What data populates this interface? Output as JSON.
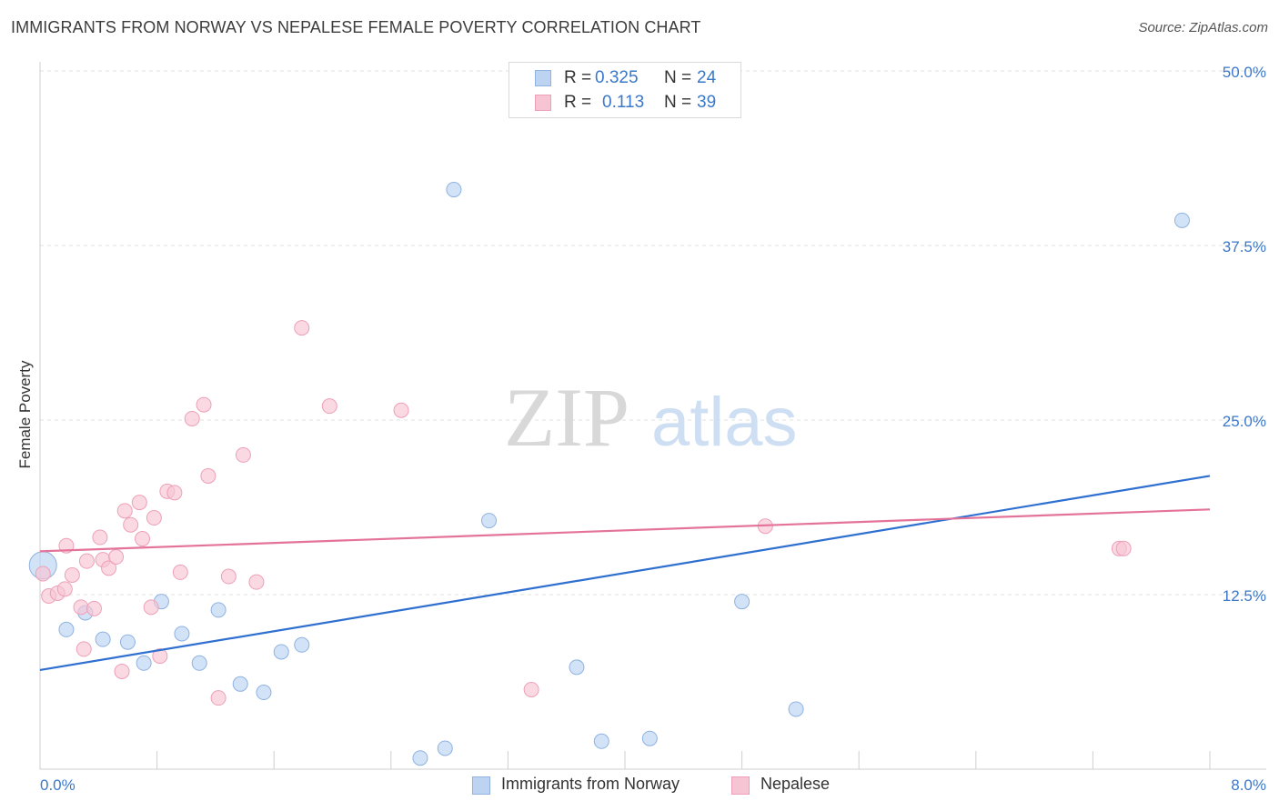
{
  "title": "IMMIGRANTS FROM NORWAY VS NEPALESE FEMALE POVERTY CORRELATION CHART",
  "source": "Source: ZipAtlas.com",
  "watermark": {
    "zip": "ZIP",
    "atlas": "atlas"
  },
  "legend": {
    "rows": [
      {
        "r_label": "R =",
        "r_value": "0.325",
        "n_label": "N =",
        "n_value": "24"
      },
      {
        "r_label": "R =",
        "r_value": "0.113",
        "n_label": "N =",
        "n_value": "39"
      }
    ]
  },
  "colors": {
    "norway_fill": "#bcd4f2",
    "norway_stroke": "#8fb2e0",
    "norway_line": "#2e6fd0",
    "nepalese_fill": "#f7c4d4",
    "nepalese_stroke": "#eda0b8",
    "nepalese_line": "#e4739a",
    "tick_label": "#3a78c9",
    "grid": "#e0e0e0"
  },
  "chart_data": {
    "type": "scatter",
    "title": "IMMIGRANTS FROM NORWAY VS NEPALESE FEMALE POVERTY CORRELATION CHART",
    "xlabel": "",
    "ylabel": "Female Poverty",
    "xlim": [
      0,
      8
    ],
    "ylim": [
      0,
      50
    ],
    "x_tick_labels": [
      "0.0%",
      "8.0%"
    ],
    "y_ticks": [
      12.5,
      25.0,
      37.5,
      50.0
    ],
    "y_tick_labels": [
      "12.5%",
      "25.0%",
      "37.5%",
      "50.0%"
    ],
    "grid": "horizontal dashed",
    "series": [
      {
        "name": "Immigrants from Norway",
        "trend": [
          [
            0,
            7.1
          ],
          [
            8,
            21.0
          ]
        ],
        "points": [
          [
            0.02,
            14.6
          ],
          [
            0.18,
            10.0
          ],
          [
            0.31,
            11.2
          ],
          [
            0.43,
            9.3
          ],
          [
            0.6,
            9.1
          ],
          [
            0.71,
            7.6
          ],
          [
            0.83,
            12.0
          ],
          [
            0.97,
            9.7
          ],
          [
            1.09,
            7.6
          ],
          [
            1.22,
            11.4
          ],
          [
            1.37,
            6.1
          ],
          [
            1.53,
            5.5
          ],
          [
            1.65,
            8.4
          ],
          [
            1.79,
            8.9
          ],
          [
            2.6,
            0.8
          ],
          [
            2.77,
            1.5
          ],
          [
            2.83,
            41.5
          ],
          [
            3.07,
            17.8
          ],
          [
            3.67,
            7.3
          ],
          [
            3.84,
            2.0
          ],
          [
            4.17,
            2.2
          ],
          [
            4.8,
            12.0
          ],
          [
            5.17,
            4.3
          ],
          [
            7.81,
            39.3
          ]
        ]
      },
      {
        "name": "Nepalese",
        "trend": [
          [
            0,
            15.6
          ],
          [
            8,
            18.6
          ]
        ],
        "points": [
          [
            0.02,
            14.0
          ],
          [
            0.06,
            12.4
          ],
          [
            0.12,
            12.6
          ],
          [
            0.17,
            12.9
          ],
          [
            0.18,
            16.0
          ],
          [
            0.22,
            13.9
          ],
          [
            0.28,
            11.6
          ],
          [
            0.3,
            8.6
          ],
          [
            0.32,
            14.9
          ],
          [
            0.37,
            11.5
          ],
          [
            0.41,
            16.6
          ],
          [
            0.43,
            15.0
          ],
          [
            0.47,
            14.4
          ],
          [
            0.52,
            15.2
          ],
          [
            0.56,
            7.0
          ],
          [
            0.58,
            18.5
          ],
          [
            0.62,
            17.5
          ],
          [
            0.68,
            19.1
          ],
          [
            0.7,
            16.5
          ],
          [
            0.76,
            11.6
          ],
          [
            0.78,
            18.0
          ],
          [
            0.82,
            8.1
          ],
          [
            0.87,
            19.9
          ],
          [
            0.92,
            19.8
          ],
          [
            0.96,
            14.1
          ],
          [
            1.04,
            25.1
          ],
          [
            1.12,
            26.1
          ],
          [
            1.15,
            21.0
          ],
          [
            1.22,
            5.1
          ],
          [
            1.29,
            13.8
          ],
          [
            1.39,
            22.5
          ],
          [
            1.48,
            13.4
          ],
          [
            1.79,
            31.6
          ],
          [
            1.98,
            26.0
          ],
          [
            2.47,
            25.7
          ],
          [
            3.36,
            5.7
          ],
          [
            4.96,
            17.4
          ],
          [
            7.38,
            15.8
          ],
          [
            7.41,
            15.8
          ]
        ]
      }
    ]
  },
  "bottom_legend": [
    "Immigrants from Norway",
    "Nepalese"
  ]
}
